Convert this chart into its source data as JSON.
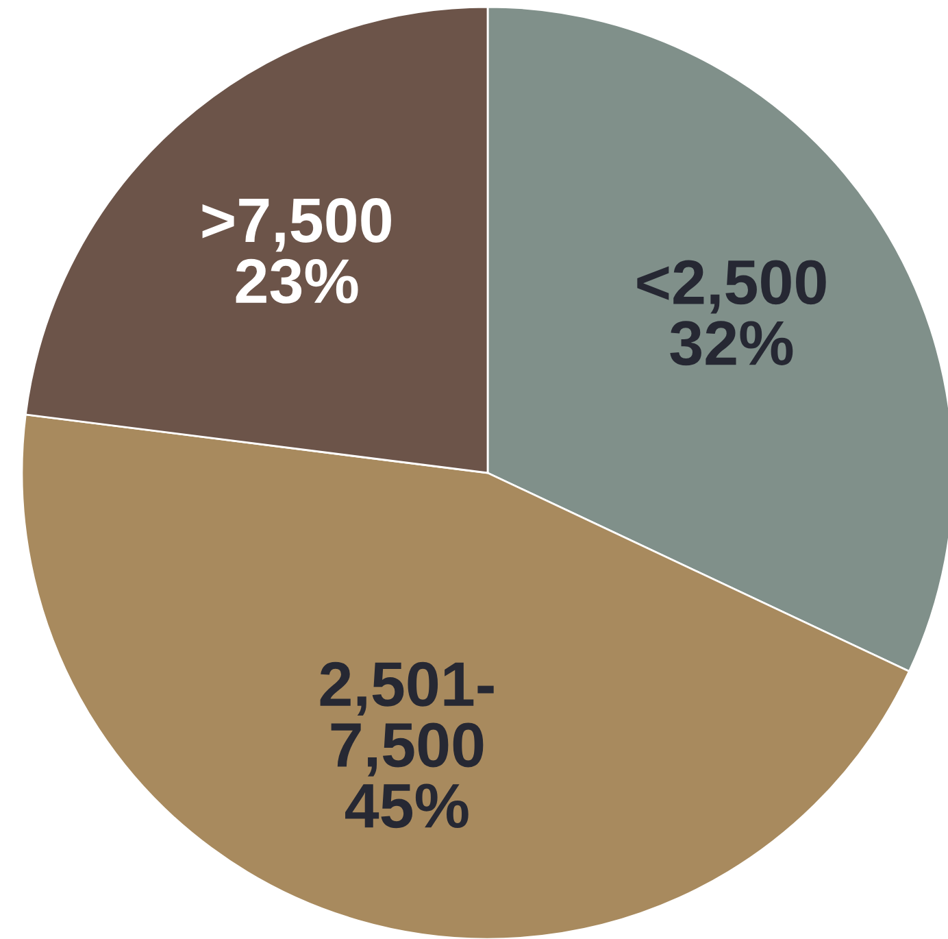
{
  "chart_data": {
    "type": "pie",
    "categories": [
      "<2,500",
      "2,501-\n7,500",
      ">7,500"
    ],
    "values": [
      32,
      45,
      23
    ],
    "value_labels": [
      "32%",
      "45%",
      "23%"
    ],
    "colors": [
      "#80908a",
      "#a88a5e",
      "#6c5449"
    ]
  }
}
